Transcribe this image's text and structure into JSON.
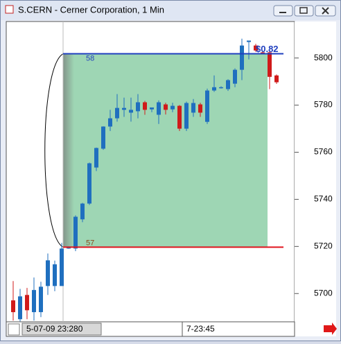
{
  "window_title": "S.CERN - Cerner Corporation, 1 Min",
  "chart_data": {
    "type": "candlestick",
    "open": [
      5697.1,
      5689.1,
      5699.4,
      5692.1,
      5692.1,
      5703.2,
      5703.2,
      5703.2,
      5719.1,
      5719.1,
      5731.5,
      5738.2,
      5753.5,
      5761.5,
      5770.9,
      5774.4,
      5778,
      5776.8,
      5777.4,
      5781.2,
      5778.2,
      5775.9,
      5780.3,
      5778.2,
      5779.7,
      5770,
      5776.8,
      5780.3,
      5772.9,
      5786.2,
      5787.2,
      5786.8,
      5789.1,
      5795,
      5806.8,
      5805.3,
      5802.4,
      5802.4,
      5792.6
    ],
    "high": [
      5705.3,
      5702,
      5702.4,
      5706.8,
      5705,
      5717,
      5714,
      5721.5,
      5720,
      5733.2,
      5738.5,
      5755.6,
      5762,
      5771,
      5778,
      5784.7,
      5783.2,
      5783.2,
      5784.7,
      5781.8,
      5779,
      5782,
      5781,
      5781,
      5780,
      5781.5,
      5782.6,
      5781,
      5787,
      5792.6,
      5788,
      5791,
      5795.6,
      5808.2,
      5807.4,
      5806,
      5803,
      5803,
      5793
    ],
    "low": [
      5688.5,
      5688.2,
      5689.1,
      5688.5,
      5690,
      5699.4,
      5701,
      5703.2,
      5719,
      5718,
      5730.3,
      5737.6,
      5752,
      5761,
      5769,
      5773,
      5775,
      5773,
      5774.4,
      5775.9,
      5777,
      5772,
      5776,
      5777,
      5769,
      5769,
      5775,
      5775,
      5772,
      5785.6,
      5787,
      5786,
      5787.6,
      5790.6,
      5799.4,
      5802.6,
      5801.6,
      5786.8,
      5789
    ],
    "close": [
      5692.1,
      5698.8,
      5692.9,
      5701.5,
      5702.9,
      5714.1,
      5712.4,
      5719.1,
      5720,
      5732.6,
      5738.2,
      5755.3,
      5761.8,
      5770.9,
      5774.4,
      5778.8,
      5778.8,
      5778,
      5781.2,
      5778,
      5779,
      5781.2,
      5778,
      5779.7,
      5770,
      5780.9,
      5780.9,
      5776.8,
      5786.2,
      5787.6,
      5787.6,
      5790.6,
      5795,
      5805.3,
      5807.4,
      5803.2,
      5801.8,
      5792,
      5789.7
    ],
    "up_color": "#1f6fbf",
    "down_color": "#d01a1a",
    "ylim": [
      5688,
      5815.5
    ],
    "yticks": [
      5700,
      5720,
      5740,
      5760,
      5780,
      5800
    ],
    "levels": [
      {
        "value": 5801.8,
        "label": "58",
        "color": "#1f3fbf"
      },
      {
        "value": 5719.7,
        "label": "57",
        "color": "#e0141e"
      }
    ],
    "band_color": "#9ed6b4",
    "annotation": "$0.82",
    "xlabels": [
      "5-07-09 23:280",
      "7-23:45"
    ]
  }
}
